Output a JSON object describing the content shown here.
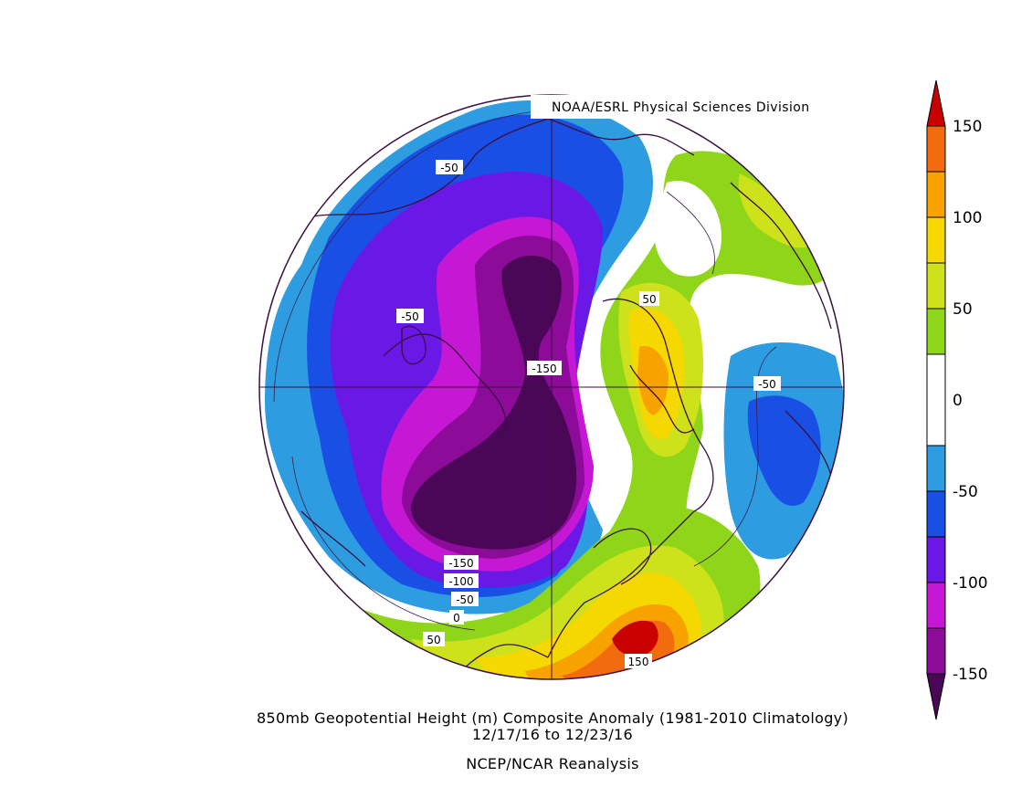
{
  "credit": "NOAA/ESRL Physical Sciences Division",
  "caption": {
    "line1": "850mb Geopotential Height (m) Composite Anomaly (1981-2010 Climatology)",
    "line2": "12/17/16  to 12/23/16",
    "line3": "NCEP/NCAR Reanalysis"
  },
  "colorbar": {
    "ticks": [
      {
        "value": 150,
        "label": "150"
      },
      {
        "value": 100,
        "label": "100"
      },
      {
        "value": 50,
        "label": "50"
      },
      {
        "value": 0,
        "label": "0"
      },
      {
        "value": -50,
        "label": "-50"
      },
      {
        "value": -100,
        "label": "-100"
      },
      {
        "value": -150,
        "label": "-150"
      }
    ],
    "bands": [
      {
        "from": 150,
        "to": 175,
        "color": "#c80000"
      },
      {
        "from": 125,
        "to": 150,
        "color": "#f26b0f"
      },
      {
        "from": 100,
        "to": 125,
        "color": "#f8a200"
      },
      {
        "from": 75,
        "to": 100,
        "color": "#f5d800"
      },
      {
        "from": 50,
        "to": 75,
        "color": "#cde21a"
      },
      {
        "from": 25,
        "to": 50,
        "color": "#8fd61a"
      },
      {
        "from": -25,
        "to": 25,
        "color": "#ffffff"
      },
      {
        "from": -50,
        "to": -25,
        "color": "#2d9ce0"
      },
      {
        "from": -75,
        "to": -50,
        "color": "#1a4fe6"
      },
      {
        "from": -100,
        "to": -75,
        "color": "#6a18e6"
      },
      {
        "from": -125,
        "to": -100,
        "color": "#c618d4"
      },
      {
        "from": -150,
        "to": -125,
        "color": "#8c0b98"
      },
      {
        "from": -175,
        "to": -150,
        "color": "#4a0758"
      }
    ],
    "min": -175,
    "max": 175
  },
  "contour_labels": [
    {
      "text": "-50"
    },
    {
      "text": "-50"
    },
    {
      "text": "-150"
    },
    {
      "text": "50"
    },
    {
      "text": "-50"
    },
    {
      "text": "-150"
    },
    {
      "text": "-100"
    },
    {
      "text": "-50"
    },
    {
      "text": "0"
    },
    {
      "text": "50"
    },
    {
      "text": "150"
    }
  ]
}
